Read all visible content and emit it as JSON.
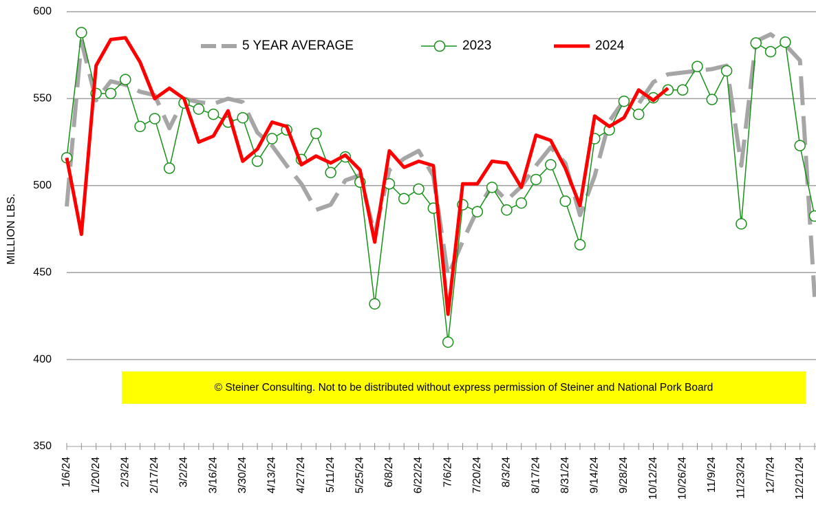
{
  "chart_data": {
    "type": "line",
    "y_label": "MILLION LBS.",
    "annotation": "© Steiner Consulting.  Not to be distributed without express permission of Steiner and National Pork Board",
    "categories": [
      "1/6/24",
      null,
      "1/20/24",
      null,
      "2/3/24",
      null,
      "2/17/24",
      null,
      "3/2/24",
      null,
      "3/16/24",
      null,
      "3/30/24",
      null,
      "4/13/24",
      null,
      "4/27/24",
      null,
      "5/11/24",
      null,
      "5/25/24",
      null,
      "6/8/24",
      null,
      "6/22/24",
      null,
      "7/6/24",
      null,
      "7/20/24",
      null,
      "8/3/24",
      null,
      "8/17/24",
      null,
      "8/31/24",
      null,
      "9/14/24",
      null,
      "9/28/24",
      null,
      "10/12/24",
      null,
      "10/26/24",
      null,
      "11/9/24",
      null,
      "11/23/24",
      null,
      "12/7/24",
      null,
      "12/21/24",
      null
    ],
    "series": [
      {
        "name": "5 YEAR AVERAGE",
        "color": "#a6a6a6",
        "line_style": "dashed",
        "marker": "none",
        "values": [
          488,
          583,
          549,
          560,
          558,
          554,
          552,
          533,
          550,
          548,
          547,
          550,
          548,
          530.5,
          523,
          511.5,
          501,
          486,
          489,
          503,
          506,
          472,
          509,
          515.5,
          520,
          505.5,
          448,
          468,
          486,
          500,
          491.5,
          499.5,
          511.5,
          522,
          513,
          483,
          505.5,
          537,
          549,
          547,
          559.5,
          564,
          565,
          566,
          567,
          569,
          511.5,
          583,
          587,
          581,
          572,
          436
        ]
      },
      {
        "name": "2023",
        "color": "#169016",
        "line_style": "solid",
        "marker": "circle",
        "values": [
          516,
          588,
          553,
          553,
          561,
          534,
          538.5,
          510,
          547.5,
          544,
          541,
          536.5,
          539,
          514,
          527,
          532,
          515,
          530,
          507.5,
          516.5,
          502,
          432,
          501,
          492.5,
          498,
          487,
          410,
          489,
          485,
          499,
          486,
          490,
          503.5,
          512,
          491,
          466,
          527,
          532,
          548.5,
          541,
          550.5,
          555,
          555,
          568.5,
          549.5,
          566,
          478,
          582,
          577,
          582.5,
          523,
          482.5
        ]
      },
      {
        "name": "2024",
        "color": "#ff0000",
        "line_style": "solid",
        "marker": "none",
        "values": [
          516,
          472,
          569,
          584,
          585,
          571,
          550,
          556,
          550,
          525,
          528.5,
          543,
          514,
          521,
          536.5,
          534,
          512,
          517,
          513,
          517.5,
          509,
          467.5,
          520,
          510.5,
          514,
          511.5,
          426,
          501,
          501,
          514,
          513,
          499,
          529,
          526,
          510,
          488.5,
          540,
          534,
          539,
          555,
          549,
          556,
          null,
          null,
          null,
          null,
          null,
          null,
          null,
          null,
          null,
          null
        ]
      }
    ],
    "ylim": [
      350,
      600
    ],
    "yticks": [
      350,
      400,
      450,
      500,
      550,
      600
    ],
    "grid": true,
    "legend": "top"
  }
}
